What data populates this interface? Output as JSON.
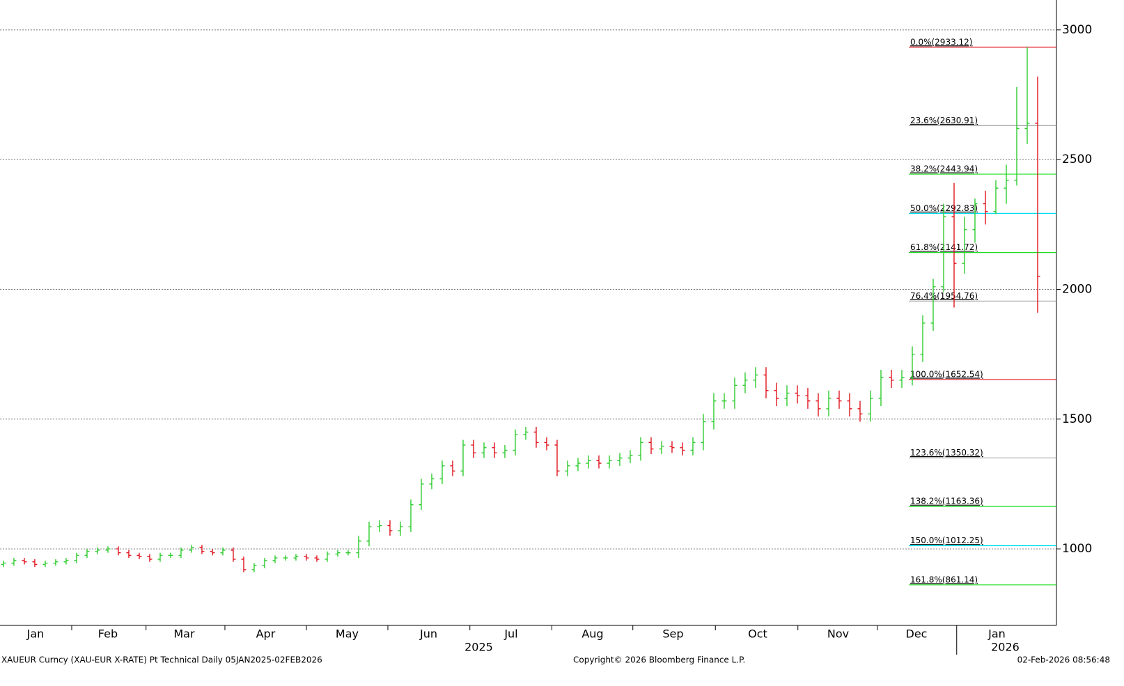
{
  "chart_data": {
    "type": "ohlc",
    "footer_left": "XAUEUR Curncy (XAU-EUR X-RATE) Pt Technical Daily 05JAN2025-02FEB2026",
    "footer_center": "Copyright© 2026 Bloomberg Finance L.P.",
    "footer_right": "02-Feb-2026 08:56:48",
    "up_color": "#2ecc2e",
    "down_color": "#e0141e",
    "grid": true,
    "ylim": [
      705,
      3115
    ],
    "yticks": [
      1000,
      1500,
      2000,
      2500,
      3000
    ],
    "xlim": [
      -0.33,
      100.8
    ],
    "xticks": [
      {
        "value": 3.07,
        "label": "Jan"
      },
      {
        "value": 10,
        "label": "Feb"
      },
      {
        "value": 17.3,
        "label": "Mar"
      },
      {
        "value": 25.1,
        "label": "Apr"
      },
      {
        "value": 32.9,
        "label": "May"
      },
      {
        "value": 40.7,
        "label": "Jun"
      },
      {
        "value": 48.6,
        "label": "Jul"
      },
      {
        "value": 56.4,
        "label": "Aug"
      },
      {
        "value": 64.1,
        "label": "Sep"
      },
      {
        "value": 72.2,
        "label": "Oct"
      },
      {
        "value": 79.9,
        "label": "Nov"
      },
      {
        "value": 87.4,
        "label": "Dec"
      },
      {
        "value": 95.1,
        "label": "Jan"
      }
    ],
    "year_labels": [
      {
        "value": 45.5,
        "label": "2025"
      },
      {
        "value": 95.9,
        "label": "2026"
      }
    ],
    "fib_levels": [
      {
        "label": "0.0%(2933.12)",
        "value": 2933.12,
        "color": "#e0141e"
      },
      {
        "label": "23.6%(2630.91)",
        "value": 2630.91,
        "color": "#aaaaaa"
      },
      {
        "label": "38.2%(2443.94)",
        "value": 2443.94,
        "color": "#22dd22"
      },
      {
        "label": "50.0%(2292.83)",
        "value": 2292.83,
        "color": "#00dcf0"
      },
      {
        "label": "61.8%(2141.72)",
        "value": 2141.72,
        "color": "#22dd22"
      },
      {
        "label": "76.4%(1954.76)",
        "value": 1954.76,
        "color": "#aaaaaa"
      },
      {
        "label": "100.0%(1652.54)",
        "value": 1652.54,
        "color": "#e0141e"
      },
      {
        "label": "123.6%(1350.32)",
        "value": 1350.32,
        "color": "#aaaaaa"
      },
      {
        "label": "138.2%(1163.36)",
        "value": 1163.36,
        "color": "#22dd22"
      },
      {
        "label": "150.0%(1012.25)",
        "value": 1012.25,
        "color": "#00dcf0"
      },
      {
        "label": "161.8%(861.14)",
        "value": 861.14,
        "color": "#22dd22"
      }
    ],
    "open": [
      940,
      945,
      955,
      950,
      940,
      945,
      950,
      955,
      975,
      990,
      995,
      1000,
      985,
      975,
      970,
      960,
      975,
      975,
      995,
      1005,
      990,
      985,
      995,
      960,
      920,
      935,
      955,
      965,
      965,
      970,
      965,
      960,
      980,
      985,
      985,
      1030,
      1085,
      1090,
      1070,
      1085,
      1170,
      1250,
      1270,
      1320,
      1300,
      1400,
      1370,
      1390,
      1370,
      1380,
      1440,
      1450,
      1410,
      1400,
      1300,
      1320,
      1330,
      1340,
      1330,
      1340,
      1350,
      1360,
      1410,
      1385,
      1395,
      1390,
      1380,
      1410,
      1490,
      1570,
      1570,
      1630,
      1650,
      1670,
      1610,
      1580,
      1600,
      1590,
      1570,
      1540,
      1580,
      1570,
      1540,
      1520,
      1580,
      1660,
      1650,
      1660,
      1750,
      1870,
      2010,
      2280,
      2100,
      2230,
      2330,
      2300,
      2390,
      2420,
      2620,
      2640
    ],
    "high": [
      955,
      965,
      965,
      960,
      955,
      960,
      965,
      985,
      1000,
      1005,
      1010,
      1010,
      995,
      985,
      980,
      985,
      985,
      1005,
      1015,
      1015,
      1000,
      1005,
      1005,
      970,
      945,
      965,
      975,
      975,
      980,
      980,
      975,
      990,
      995,
      995,
      1050,
      1105,
      1110,
      1110,
      1105,
      1190,
      1270,
      1290,
      1340,
      1340,
      1420,
      1420,
      1410,
      1410,
      1400,
      1460,
      1470,
      1470,
      1430,
      1420,
      1340,
      1350,
      1360,
      1360,
      1360,
      1370,
      1380,
      1430,
      1430,
      1415,
      1415,
      1410,
      1430,
      1520,
      1600,
      1600,
      1660,
      1680,
      1700,
      1700,
      1640,
      1630,
      1630,
      1620,
      1600,
      1610,
      1610,
      1600,
      1570,
      1610,
      1690,
      1690,
      1690,
      1780,
      1900,
      2040,
      2330,
      2410,
      2280,
      2350,
      2380,
      2420,
      2480,
      2780,
      2933,
      2820
    ],
    "low": [
      930,
      935,
      940,
      930,
      930,
      935,
      940,
      945,
      965,
      980,
      985,
      975,
      965,
      960,
      950,
      950,
      965,
      965,
      985,
      980,
      975,
      975,
      950,
      910,
      910,
      925,
      945,
      955,
      955,
      955,
      950,
      950,
      970,
      975,
      965,
      1010,
      1065,
      1050,
      1050,
      1065,
      1150,
      1230,
      1250,
      1280,
      1280,
      1350,
      1350,
      1350,
      1350,
      1360,
      1420,
      1390,
      1380,
      1280,
      1280,
      1300,
      1310,
      1310,
      1310,
      1320,
      1330,
      1340,
      1365,
      1365,
      1370,
      1360,
      1360,
      1380,
      1460,
      1540,
      1540,
      1600,
      1620,
      1580,
      1550,
      1550,
      1560,
      1540,
      1510,
      1510,
      1540,
      1510,
      1490,
      1490,
      1550,
      1620,
      1620,
      1630,
      1720,
      1840,
      1990,
      1930,
      2060,
      2180,
      2250,
      2290,
      2330,
      2400,
      2560,
      1910
    ],
    "close": [
      945,
      955,
      950,
      940,
      945,
      950,
      955,
      975,
      990,
      995,
      1000,
      985,
      975,
      970,
      960,
      975,
      975,
      995,
      1005,
      990,
      985,
      995,
      960,
      920,
      935,
      955,
      965,
      965,
      970,
      965,
      960,
      980,
      985,
      985,
      1030,
      1085,
      1090,
      1070,
      1085,
      1170,
      1250,
      1270,
      1320,
      1300,
      1400,
      1370,
      1390,
      1370,
      1380,
      1440,
      1450,
      1410,
      1400,
      1300,
      1320,
      1330,
      1340,
      1330,
      1340,
      1350,
      1360,
      1410,
      1385,
      1395,
      1390,
      1380,
      1410,
      1490,
      1570,
      1570,
      1630,
      1650,
      1670,
      1610,
      1580,
      1600,
      1590,
      1570,
      1540,
      1580,
      1570,
      1540,
      1520,
      1580,
      1660,
      1650,
      1660,
      1750,
      1870,
      2010,
      2280,
      2100,
      2230,
      2330,
      2300,
      2390,
      2420,
      2620,
      2640,
      2050
    ]
  }
}
